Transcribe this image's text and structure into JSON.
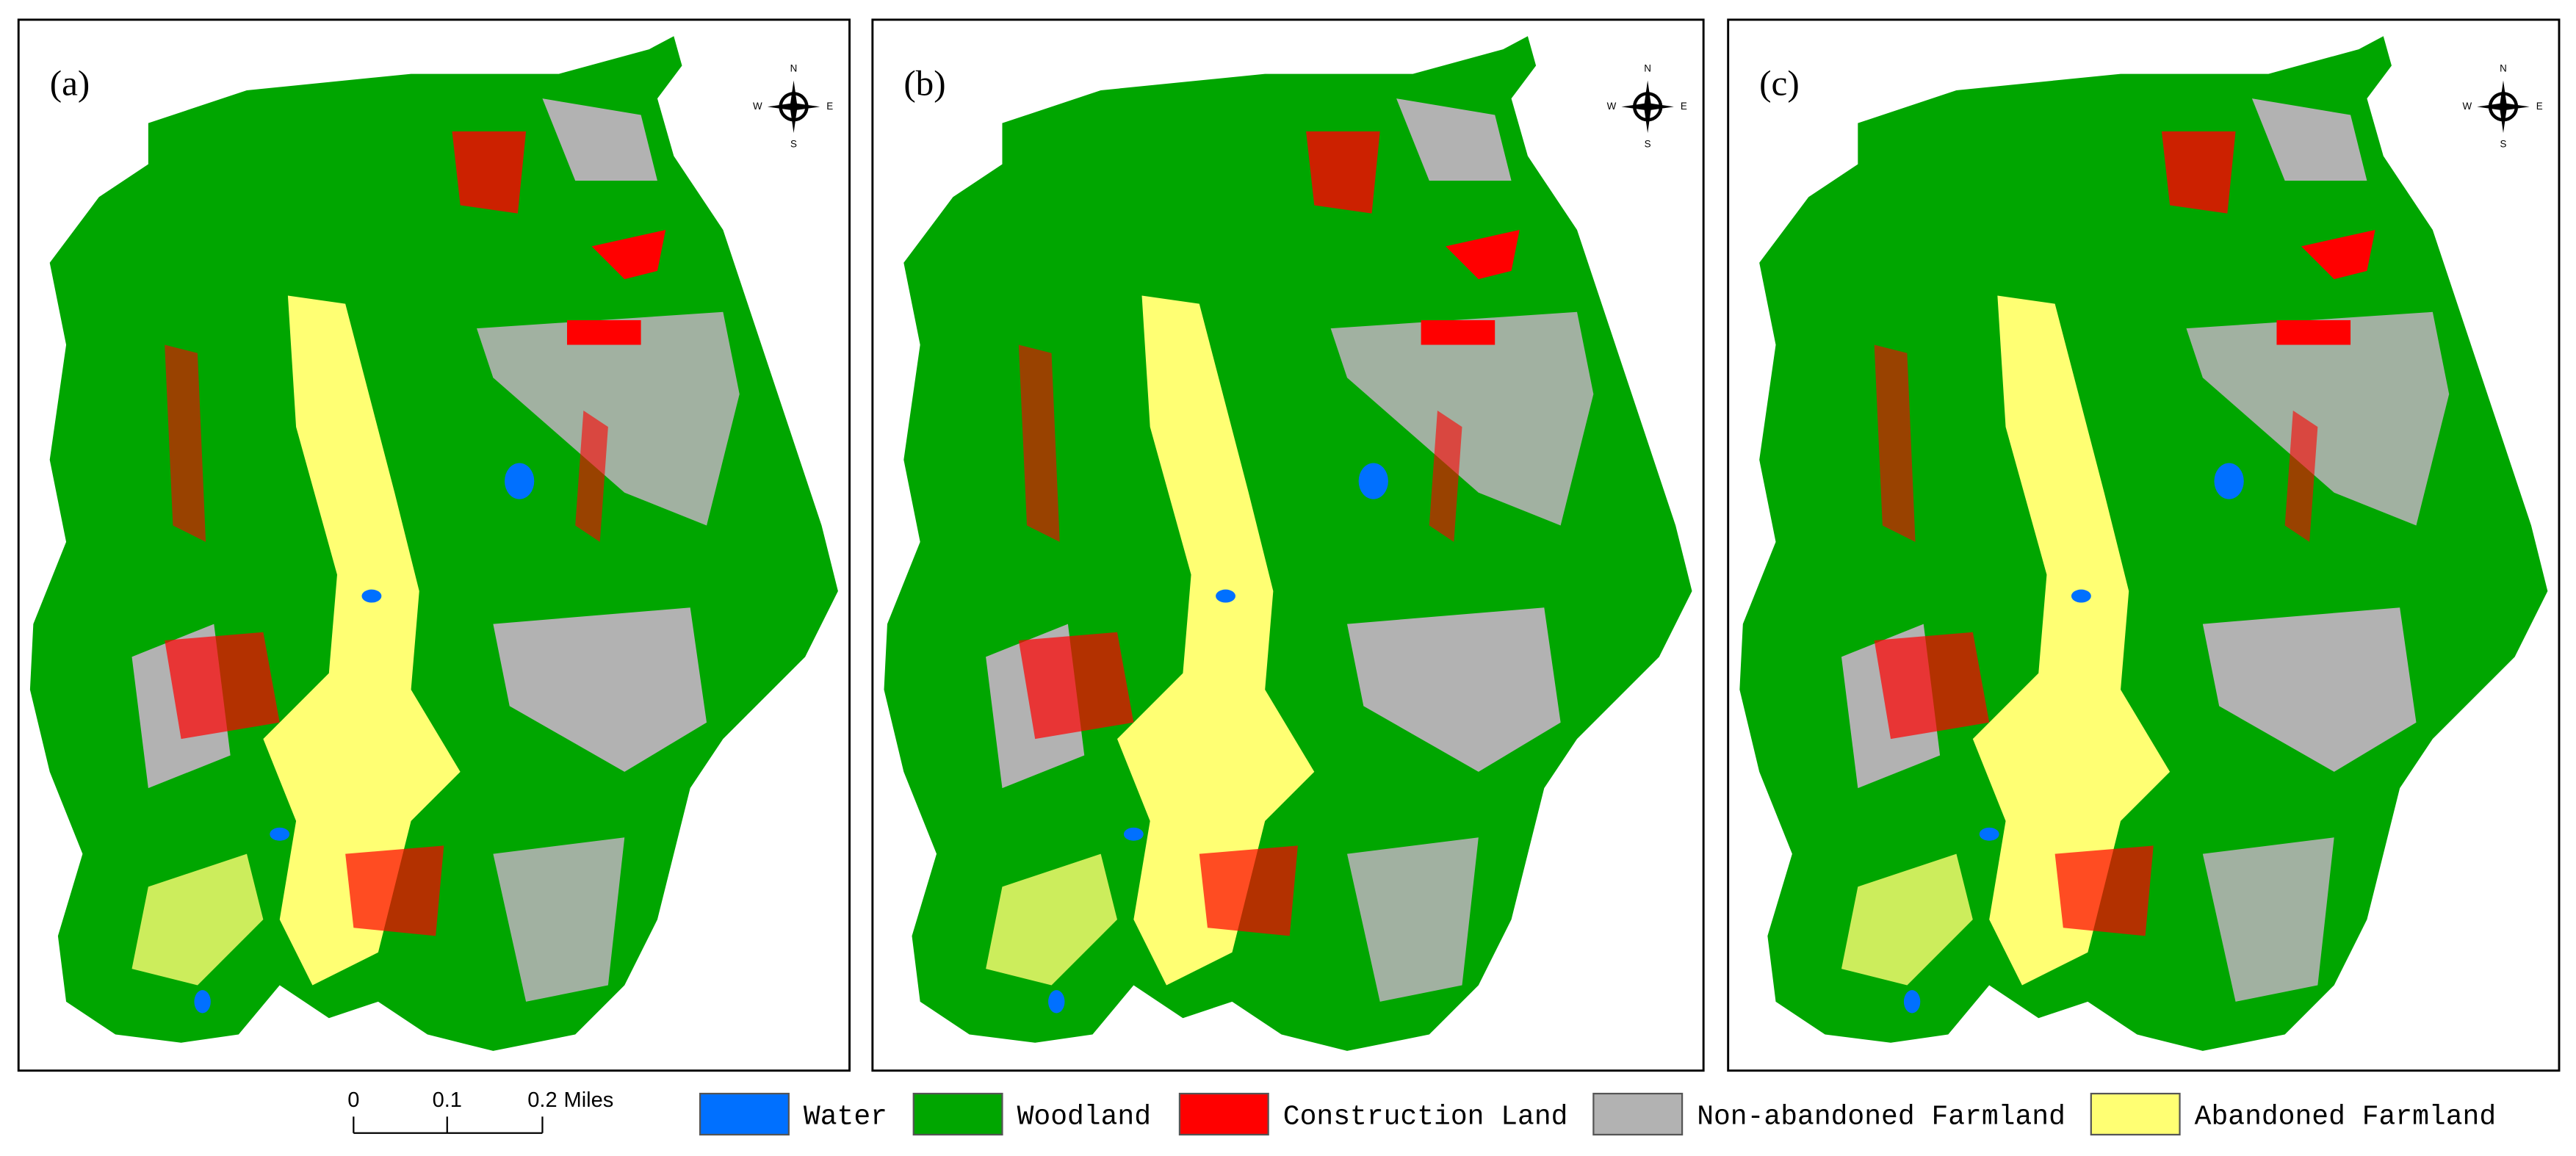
{
  "panels": [
    {
      "label": "(a)"
    },
    {
      "label": "(b)"
    },
    {
      "label": "(c)"
    }
  ],
  "compass": {
    "n": "N",
    "s": "S",
    "e": "E",
    "w": "W"
  },
  "scale_bar": {
    "ticks": [
      "0",
      "0.1",
      "0.2"
    ],
    "unit": "Miles"
  },
  "legend": [
    {
      "label": "Water",
      "color": "#0070ff"
    },
    {
      "label": "Woodland",
      "color": "#00a600"
    },
    {
      "label": "Construction Land",
      "color": "#ff0000"
    },
    {
      "label": "Non-abandoned Farmland",
      "color": "#b2b2b2"
    },
    {
      "label": "Abandoned Farmland",
      "color": "#ffff73"
    }
  ]
}
